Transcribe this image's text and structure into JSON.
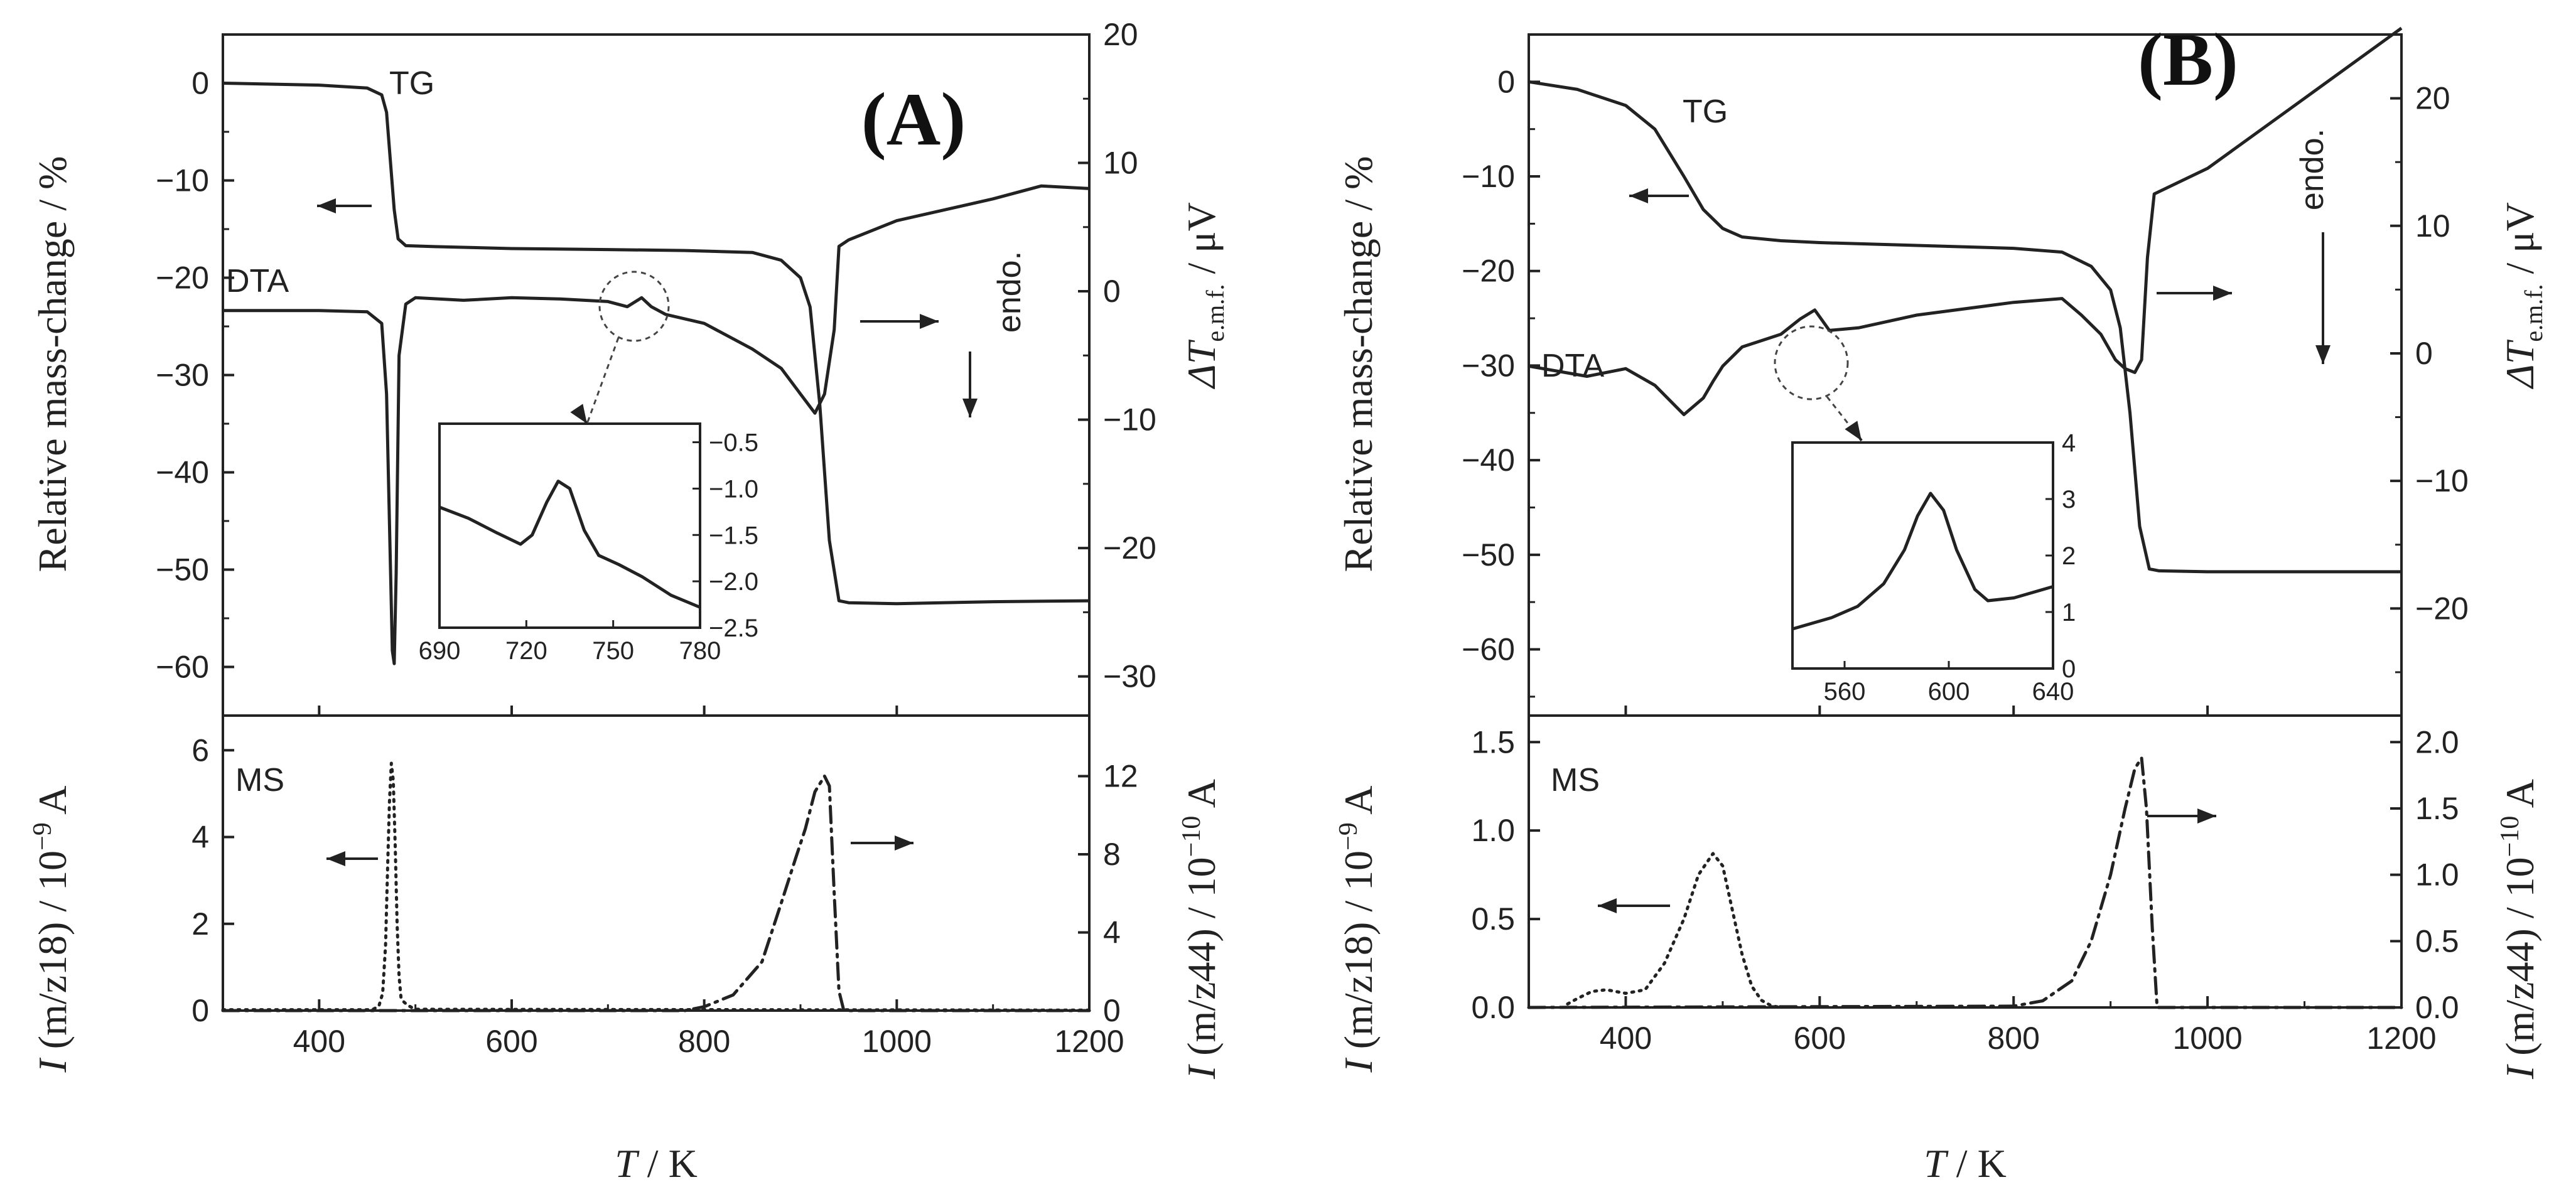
{
  "chart_data": [
    {
      "panel_label": "(A)",
      "type": "line",
      "main": {
        "xlim": [
          300,
          1200
        ],
        "ylim_left": [
          -65,
          5
        ],
        "ylim_right": [
          -33.05,
          20
        ],
        "yticks_left": [
          0,
          -10,
          -20,
          -30,
          -40,
          -50,
          -60
        ],
        "yticks_right": [
          20,
          10,
          0,
          -10,
          -20,
          -30
        ],
        "ylabel_left": "Relative mass-change / %",
        "ylabel_right": "ΔTe.m.f. / μV",
        "series": [
          {
            "name": "TG",
            "axis": "left",
            "style": "solid",
            "x": [
              300,
              400,
              450,
              465,
              470,
              474,
              478,
              482,
              490,
              520,
              600,
              700,
              780,
              850,
              880,
              900,
              910,
              920,
              930,
              940,
              950,
              1000,
              1100,
              1200
            ],
            "y": [
              0,
              -0.2,
              -0.5,
              -1.2,
              -3,
              -8,
              -13,
              -16,
              -16.7,
              -16.8,
              -17,
              -17.1,
              -17.2,
              -17.4,
              -18.2,
              -20,
              -23,
              -33,
              -47,
              -53.2,
              -53.4,
              -53.5,
              -53.3,
              -53.2
            ]
          },
          {
            "name": "DTA",
            "axis": "right",
            "style": "solid",
            "x": [
              300,
              400,
              450,
              465,
              470,
              473,
              476,
              478,
              480,
              483,
              490,
              500,
              550,
              600,
              650,
              700,
              720,
              735,
              745,
              760,
              800,
              850,
              880,
              900,
              915,
              925,
              935,
              940,
              950,
              1000,
              1100,
              1150,
              1200
            ],
            "y": [
              -1.5,
              -1.5,
              -1.6,
              -2.5,
              -8,
              -18,
              -28,
              -29,
              -22,
              -5,
              -1.0,
              -0.5,
              -0.7,
              -0.5,
              -0.6,
              -0.8,
              -1.2,
              -0.5,
              -1.2,
              -1.8,
              -2.5,
              -4.5,
              -6,
              -8,
              -9.5,
              -8.0,
              -3,
              3.5,
              4.0,
              5.5,
              7.2,
              8.2,
              8.0
            ]
          }
        ],
        "annotations": [
          {
            "text": "TG"
          },
          {
            "text": "DTA"
          },
          {
            "text": "endo."
          }
        ]
      },
      "inset": {
        "xlim": [
          690,
          780
        ],
        "ylim": [
          -2.5,
          -0.3
        ],
        "xticks": [
          690,
          720,
          750,
          780
        ],
        "yticks": [
          -0.5,
          -1.0,
          -1.5,
          -2.0,
          -2.5
        ],
        "series": [
          {
            "style": "solid",
            "x": [
              690,
              700,
              710,
              718,
              722,
              727,
              731,
              735,
              740,
              745,
              752,
              760,
              770,
              780
            ],
            "y": [
              -1.2,
              -1.32,
              -1.48,
              -1.6,
              -1.5,
              -1.15,
              -0.92,
              -1.0,
              -1.45,
              -1.72,
              -1.82,
              -1.95,
              -2.15,
              -2.28
            ]
          }
        ]
      },
      "ms": {
        "xlim": [
          300,
          1200
        ],
        "ylim_left": [
          0,
          6.8
        ],
        "ylim_right": [
          0,
          15.1
        ],
        "xticks": [
          400,
          600,
          800,
          1000,
          1200
        ],
        "yticks_left": [
          0,
          2,
          4,
          6
        ],
        "yticks_right": [
          0,
          4,
          8,
          12
        ],
        "xlabel": "T / K",
        "ylabel_left": "I (m/z18) / 10-9 A",
        "ylabel_right": "I (m/z44) / 10-10 A",
        "annotations": [
          {
            "text": "MS"
          }
        ],
        "series": [
          {
            "name": "m/z18",
            "axis": "left",
            "style": "dotted",
            "x": [
              300,
              455,
              462,
              466,
              469,
              471,
              473,
              475,
              477,
              479,
              481,
              483,
              485,
              488,
              492,
              500,
              1200
            ],
            "y": [
              0.02,
              0.02,
              0.1,
              0.4,
              1.5,
              3.2,
              4.8,
              5.7,
              5.3,
              3.8,
              2.0,
              0.8,
              0.3,
              0.2,
              0.12,
              0.03,
              0.01
            ]
          },
          {
            "name": "m/z44",
            "axis": "right",
            "style": "dashdot",
            "x": [
              300,
              780,
              800,
              830,
              860,
              880,
              895,
              905,
              915,
              925,
              930,
              935,
              940,
              945,
              1200
            ],
            "y": [
              0,
              0,
              0.2,
              0.8,
              2.5,
              5.5,
              7.8,
              9.3,
              11.2,
              12.0,
              11.5,
              6,
              1,
              0,
              0
            ]
          }
        ]
      }
    },
    {
      "panel_label": "(B)",
      "type": "line",
      "main": {
        "xlim": [
          300,
          1200
        ],
        "ylim_left": [
          -67,
          5
        ],
        "ylim_right": [
          -28.4,
          25
        ],
        "yticks_left": [
          0,
          -10,
          -20,
          -30,
          -40,
          -50,
          -60
        ],
        "yticks_right": [
          20,
          10,
          0,
          -10,
          -20
        ],
        "ylabel_left": "Relative mass-change / %",
        "ylabel_right": "ΔTe.m.f. / μV",
        "series": [
          {
            "name": "TG",
            "axis": "left",
            "style": "solid",
            "x": [
              300,
              350,
              400,
              430,
              460,
              480,
              500,
              520,
              560,
              600,
              700,
              800,
              850,
              880,
              900,
              910,
              920,
              930,
              940,
              950,
              1000,
              1100,
              1200
            ],
            "y": [
              0,
              -0.8,
              -2.5,
              -5,
              -10,
              -13.5,
              -15.5,
              -16.4,
              -16.8,
              -17,
              -17.3,
              -17.6,
              -18,
              -19.5,
              -22,
              -26,
              -35,
              -47,
              -51.5,
              -51.7,
              -51.8,
              -51.8,
              -51.8
            ]
          },
          {
            "name": "DTA",
            "axis": "right",
            "style": "solid",
            "x": [
              300,
              360,
              400,
              430,
              460,
              480,
              490,
              500,
              520,
              560,
              580,
              595,
              610,
              640,
              700,
              800,
              850,
              870,
              890,
              905,
              915,
              925,
              932,
              938,
              945,
              1000,
              1100,
              1200
            ],
            "y": [
              -1.0,
              -1.8,
              -1.2,
              -2.5,
              -4.8,
              -3.5,
              -2.2,
              -1.0,
              0.5,
              1.5,
              2.7,
              3.4,
              1.8,
              2.0,
              3.0,
              4.0,
              4.3,
              3.0,
              1.5,
              -0.5,
              -1.2,
              -1.5,
              -0.5,
              7.5,
              12.5,
              14.5,
              20,
              25.5
            ]
          }
        ],
        "annotations": [
          {
            "text": "TG"
          },
          {
            "text": "DTA"
          },
          {
            "text": "endo."
          }
        ]
      },
      "inset": {
        "xlim": [
          540,
          640
        ],
        "ylim": [
          0,
          4
        ],
        "xticks": [
          560,
          600,
          640
        ],
        "yticks": [
          0,
          1,
          2,
          3,
          4
        ],
        "series": [
          {
            "style": "solid",
            "x": [
              540,
              555,
              565,
              575,
              583,
              588,
              593,
              598,
              603,
              610,
              615,
              625,
              640
            ],
            "y": [
              0.7,
              0.9,
              1.1,
              1.5,
              2.1,
              2.7,
              3.1,
              2.8,
              2.1,
              1.4,
              1.2,
              1.25,
              1.45
            ]
          }
        ]
      },
      "ms": {
        "xlim": [
          300,
          1200
        ],
        "ylim_left": [
          0,
          1.65
        ],
        "ylim_right": [
          0,
          2.2
        ],
        "xticks": [
          400,
          600,
          800,
          1000,
          1200
        ],
        "yticks_left": [
          0.0,
          0.5,
          1.0,
          1.5
        ],
        "yticks_right": [
          0.0,
          0.5,
          1.0,
          1.5,
          2.0
        ],
        "xlabel": "T / K",
        "ylabel_left": "I (m/z18) / 10-9 A",
        "ylabel_right": "I (m/z44) / 10-10 A",
        "annotations": [
          {
            "text": "MS"
          }
        ],
        "series": [
          {
            "name": "m/z18",
            "axis": "left",
            "style": "dotted",
            "x": [
              340,
              350,
              365,
              380,
              400,
              420,
              440,
              460,
              475,
              490,
              500,
              510,
              520,
              530,
              540,
              550,
              560
            ],
            "y": [
              0.02,
              0.05,
              0.09,
              0.1,
              0.08,
              0.1,
              0.25,
              0.5,
              0.75,
              0.87,
              0.8,
              0.55,
              0.3,
              0.12,
              0.04,
              0.01,
              0
            ]
          },
          {
            "name": "m/z44",
            "axis": "right",
            "style": "dashdot",
            "x": [
              300,
              800,
              830,
              860,
              880,
              900,
              915,
              925,
              932,
              937,
              943,
              948,
              1200
            ],
            "y": [
              0,
              0.01,
              0.05,
              0.2,
              0.5,
              1.0,
              1.5,
              1.8,
              1.88,
              1.5,
              0.6,
              0,
              0
            ]
          }
        ]
      }
    }
  ]
}
